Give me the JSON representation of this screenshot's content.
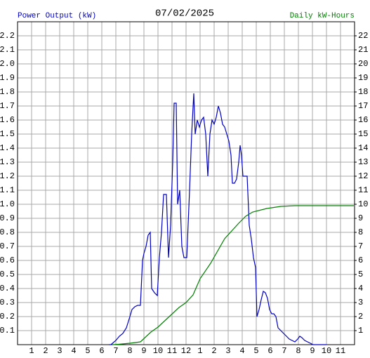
{
  "chart_data": {
    "type": "line",
    "title": "07/02/2025",
    "ylabel": "Power Output (kW)",
    "y2label": "Daily kW-Hours",
    "xlim": [
      0,
      24
    ],
    "xticks": [
      1,
      2,
      3,
      4,
      5,
      6,
      7,
      8,
      9,
      10,
      11,
      12,
      {
        "value": 13,
        "label": "1"
      },
      {
        "value": 14,
        "label": "2"
      },
      {
        "value": 15,
        "label": "3"
      },
      {
        "value": 16,
        "label": "4"
      },
      {
        "value": 17,
        "label": "5"
      },
      {
        "value": 18,
        "label": "6"
      },
      {
        "value": 19,
        "label": "7"
      },
      {
        "value": 20,
        "label": "8"
      },
      {
        "value": 21,
        "label": "9"
      },
      {
        "value": 22,
        "label": "10"
      },
      {
        "value": 23,
        "label": "11"
      }
    ],
    "ylim": [
      0,
      2.3
    ],
    "yticks": [
      0.1,
      0.2,
      0.3,
      0.4,
      0.5,
      0.6,
      0.7,
      0.8,
      0.9,
      {
        "value": 1,
        "label": "1.0"
      },
      1.1,
      1.2,
      1.3,
      1.4,
      1.5,
      1.6,
      1.7,
      1.8,
      1.9,
      {
        "value": 2,
        "label": "2.0"
      },
      2.1,
      2.2
    ],
    "y2lim": [
      0,
      23
    ],
    "y2ticks": [
      1,
      2,
      3,
      4,
      5,
      6,
      7,
      8,
      9,
      10,
      11,
      12,
      13,
      14,
      15,
      16,
      17,
      18,
      19,
      20,
      21,
      22
    ],
    "grid": true,
    "series": [
      {
        "name": "Power Output (kW)",
        "color": "#0000c0",
        "x": [
          6.5,
          6.65,
          7,
          7.25,
          7.5,
          7.75,
          8,
          8.15,
          8.35,
          8.55,
          8.75,
          8.9,
          9,
          9.15,
          9.3,
          9.45,
          9.55,
          9.75,
          9.95,
          10.1,
          10.25,
          10.4,
          10.6,
          10.75,
          10.9,
          11.05,
          11.15,
          11.3,
          11.4,
          11.55,
          11.7,
          11.85,
          12.05,
          12.25,
          12.4,
          12.55,
          12.65,
          12.8,
          12.95,
          13.1,
          13.25,
          13.4,
          13.55,
          13.7,
          13.85,
          14,
          14.15,
          14.3,
          14.45,
          14.6,
          14.75,
          14.9,
          15.05,
          15.2,
          15.3,
          15.45,
          15.6,
          15.75,
          15.85,
          15.95,
          16.05,
          16.2,
          16.35,
          16.5,
          16.65,
          16.8,
          16.95,
          17.05,
          17.2,
          17.35,
          17.5,
          17.65,
          17.8,
          17.95,
          18.1,
          18.25,
          18.4,
          18.55,
          18.75,
          18.95,
          19.15,
          19.35,
          19.55,
          19.75,
          19.95,
          20.1,
          20.25,
          20.45,
          20.65,
          20.85,
          21.05,
          22
        ],
        "values": [
          0,
          0,
          0.03,
          0.06,
          0.08,
          0.12,
          0.2,
          0.25,
          0.27,
          0.28,
          0.28,
          0.6,
          0.65,
          0.7,
          0.78,
          0.8,
          0.4,
          0.37,
          0.35,
          0.62,
          0.8,
          1.07,
          1.07,
          0.62,
          0.85,
          1.3,
          1.72,
          1.72,
          1.0,
          1.1,
          0.7,
          0.62,
          0.62,
          1.1,
          1.5,
          1.79,
          1.5,
          1.6,
          1.55,
          1.6,
          1.62,
          1.5,
          1.2,
          1.5,
          1.6,
          1.57,
          1.62,
          1.7,
          1.65,
          1.57,
          1.55,
          1.5,
          1.45,
          1.35,
          1.15,
          1.15,
          1.18,
          1.3,
          1.42,
          1.35,
          1.2,
          1.2,
          1.2,
          0.85,
          0.75,
          0.62,
          0.55,
          0.2,
          0.25,
          0.32,
          0.38,
          0.37,
          0.33,
          0.25,
          0.22,
          0.22,
          0.2,
          0.12,
          0.1,
          0.08,
          0.06,
          0.04,
          0.03,
          0.02,
          0.04,
          0.06,
          0.05,
          0.03,
          0.02,
          0.01,
          0,
          0
        ]
      },
      {
        "name": "Daily kW-Hours",
        "color": "#008000",
        "axis": "y2",
        "x": [
          6.75,
          7.25,
          8,
          8.75,
          9.5,
          10,
          10.75,
          11.5,
          12,
          12.5,
          13,
          13.75,
          14.75,
          15.75,
          16.25,
          16.75,
          17.75,
          18.75,
          19.75,
          23.95
        ],
        "values": [
          0,
          0.03,
          0.1,
          0.2,
          0.9,
          1.25,
          1.95,
          2.65,
          3.0,
          3.55,
          4.7,
          5.8,
          7.55,
          8.65,
          9.15,
          9.45,
          9.7,
          9.85,
          9.9,
          9.9
        ]
      }
    ]
  }
}
